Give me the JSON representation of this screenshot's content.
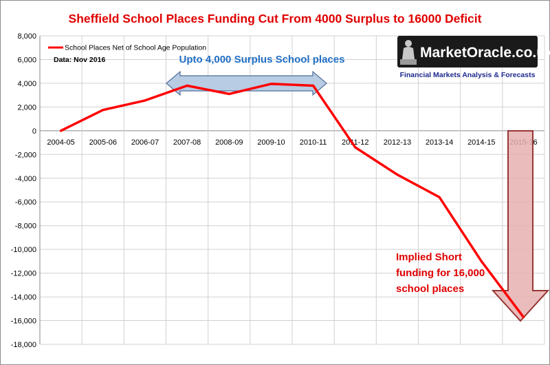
{
  "chart_data": {
    "type": "line",
    "title": "Sheffield School Places Funding Cut From 4000 Surplus to 16000 Deficit",
    "categories": [
      "2004-05",
      "2005-06",
      "2006-07",
      "2007-08",
      "2008-09",
      "2009-10",
      "2010-11",
      "2011-12",
      "2012-13",
      "2013-14",
      "2014-15",
      "2015-16"
    ],
    "series": [
      {
        "name": "School Places Net of School Age Population",
        "color": "#ff0000",
        "values": [
          0,
          1750,
          2550,
          3800,
          3100,
          3950,
          3800,
          -1400,
          -3700,
          -5600,
          -11000,
          -15700
        ]
      }
    ],
    "y_ticks": [
      "8,000",
      "6,000",
      "4,000",
      "2,000",
      "0",
      "-2,000",
      "-4,000",
      "-6,000",
      "-8,000",
      "-10,000",
      "-12,000",
      "-14,000",
      "-16,000",
      "-18,000"
    ],
    "ylim": [
      -18000,
      8000
    ],
    "grid": true,
    "legend_position": "top-left",
    "xlabel": "",
    "ylabel": ""
  },
  "notes": {
    "data_source": "Data: Nov 2016",
    "surplus_label": "Upto 4,000 Surplus School places",
    "implied_label": [
      "Implied Short",
      "funding for 16,000",
      "school places"
    ]
  },
  "logo": {
    "name": "MarketOracle.co.uk",
    "tagline": "Financial Markets Analysis & Forecasts"
  },
  "colors": {
    "series_line": "#ff0000",
    "title": "#e00000",
    "surplus_text": "#1f6fc5",
    "surplus_arrow_fill": "#b8cce4",
    "deficit_arrow_fill": "#e6b0b0",
    "deficit_arrow_stroke": "#963634",
    "logo_bg": "#1a1a1a",
    "tagline": "#1d2a8c"
  }
}
